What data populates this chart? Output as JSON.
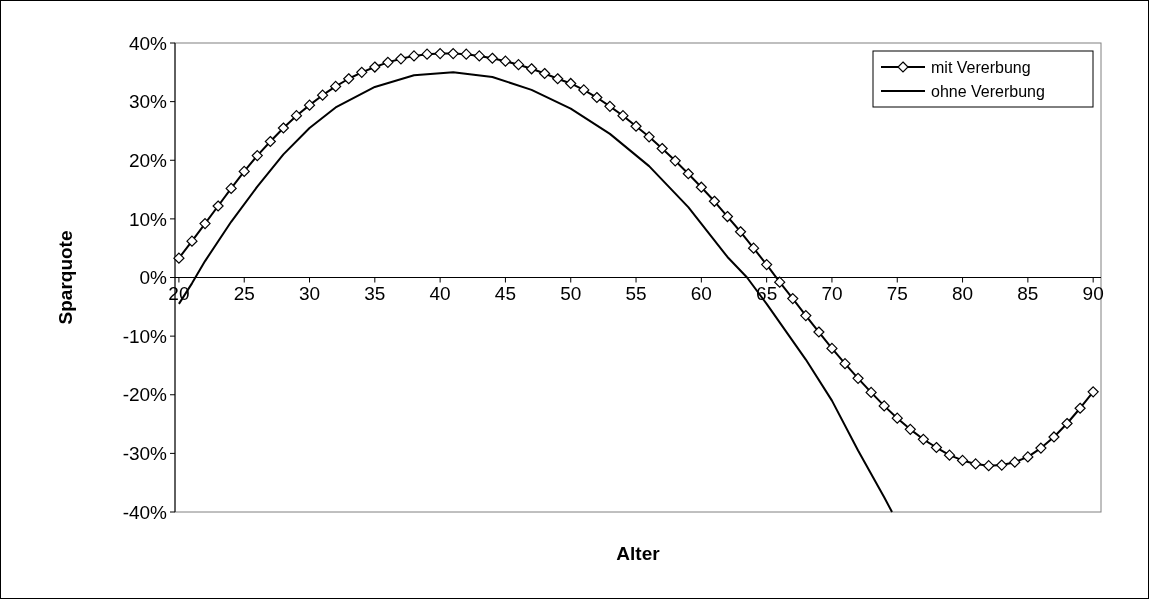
{
  "chart_data": {
    "type": "line",
    "xlabel": "Alter",
    "ylabel": "Sparquote",
    "xlim": [
      19.7,
      90.6
    ],
    "xticks": [
      20,
      25,
      30,
      35,
      40,
      45,
      50,
      55,
      60,
      65,
      70,
      75,
      80,
      85,
      90
    ],
    "ylim": [
      -40,
      40
    ],
    "yticks": [
      {
        "value": -40,
        "label": "-40%"
      },
      {
        "value": -30,
        "label": "-30%"
      },
      {
        "value": -20,
        "label": "-20%"
      },
      {
        "value": -10,
        "label": "-10%"
      },
      {
        "value": 0,
        "label": "0%"
      },
      {
        "value": 10,
        "label": "10%"
      },
      {
        "value": 20,
        "label": "20%"
      },
      {
        "value": 30,
        "label": "30%"
      },
      {
        "value": 40,
        "label": "40%"
      }
    ],
    "legend": "top right",
    "series": [
      {
        "name": "mit Vererbung",
        "color": "#000000",
        "marker": "diamond",
        "x": [
          20,
          21,
          22,
          23,
          24,
          25,
          26,
          27,
          28,
          29,
          30,
          31,
          32,
          33,
          34,
          35,
          36,
          37,
          38,
          39,
          40,
          41,
          42,
          43,
          44,
          45,
          46,
          47,
          48,
          49,
          50,
          51,
          52,
          53,
          54,
          55,
          56,
          57,
          58,
          59,
          60,
          61,
          62,
          63,
          64,
          65,
          66,
          67,
          68,
          69,
          70,
          71,
          72,
          73,
          74,
          75,
          76,
          77,
          78,
          79,
          80,
          81,
          82,
          83,
          84,
          85,
          86,
          87,
          88,
          89,
          90
        ],
        "values": [
          3.3,
          6.2,
          9.2,
          12.2,
          15.2,
          18.1,
          20.8,
          23.2,
          25.5,
          27.6,
          29.4,
          31.1,
          32.6,
          33.9,
          35.0,
          35.9,
          36.7,
          37.3,
          37.8,
          38.1,
          38.2,
          38.2,
          38.1,
          37.8,
          37.4,
          36.9,
          36.3,
          35.6,
          34.8,
          33.9,
          33.1,
          32.0,
          30.7,
          29.2,
          27.6,
          25.8,
          24.0,
          22.0,
          19.9,
          17.7,
          15.4,
          13.0,
          10.4,
          7.8,
          5.0,
          2.2,
          -0.8,
          -3.6,
          -6.5,
          -9.3,
          -12.1,
          -14.7,
          -17.2,
          -19.6,
          -21.9,
          -24.0,
          -25.9,
          -27.6,
          -29.0,
          -30.3,
          -31.2,
          -31.8,
          -32.1,
          -32.0,
          -31.5,
          -30.6,
          -29.1,
          -27.2,
          -24.9,
          -22.3,
          -19.5
        ]
      },
      {
        "name": "ohne Vererbung",
        "color": "#000000",
        "marker": "none",
        "x": [
          20,
          21,
          22,
          24,
          26,
          28,
          30,
          32,
          35,
          38,
          41,
          44,
          47,
          50,
          53,
          56,
          59,
          62,
          63.5,
          65,
          68,
          70,
          72,
          74,
          74.6
        ],
        "values": [
          -4.5,
          -1,
          2.8,
          9.5,
          15.5,
          21,
          25.5,
          29,
          32.5,
          34.5,
          35,
          34.2,
          32,
          28.8,
          24.5,
          19,
          12,
          3.5,
          0,
          -4.5,
          -14,
          -21,
          -29.5,
          -37.5,
          -40
        ]
      }
    ]
  }
}
